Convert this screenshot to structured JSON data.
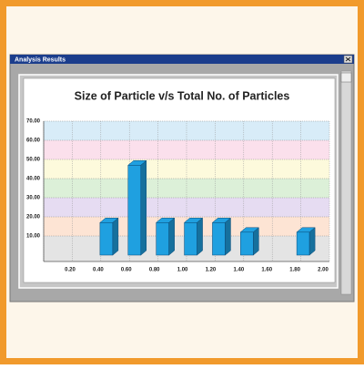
{
  "window": {
    "title": "Analysis Results"
  },
  "chart_data": {
    "type": "bar3d",
    "title": "Size of Particle v/s Total No. of  Particles",
    "categories": [
      "0.20",
      "0.40",
      "0.60",
      "0.80",
      "1.00",
      "1.20",
      "1.40",
      "1.60",
      "1.80",
      "2.00"
    ],
    "values": [
      null,
      17,
      47,
      17,
      17,
      17,
      12,
      null,
      12,
      null
    ],
    "color": "#1fa0e0",
    "ylim": [
      0,
      70
    ],
    "yticks": [
      {
        "value": 10,
        "label": "10.00"
      },
      {
        "value": 20,
        "label": "20.00"
      },
      {
        "value": 30,
        "label": "30.00"
      },
      {
        "value": 40,
        "label": "40.00"
      },
      {
        "value": 50,
        "label": "50.00"
      },
      {
        "value": 60,
        "label": "60.00"
      },
      {
        "value": 70,
        "label": "70.00"
      }
    ],
    "band_colors": [
      "#e4e4e4",
      "#fde4d4",
      "#e6dcf2",
      "#dcf0d8",
      "#fdfadc",
      "#fbe0ec",
      "#d8ecf8"
    ],
    "grid": true
  }
}
